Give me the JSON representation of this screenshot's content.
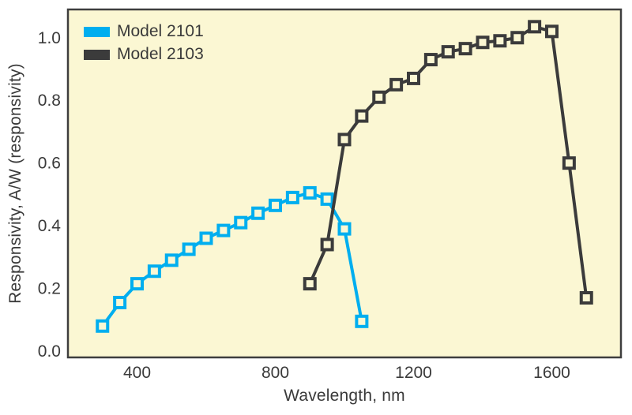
{
  "figure": {
    "background": "#ffffff",
    "plot_background": "#fbf7d3",
    "frame_color": "#3e3e3e",
    "text_color": "#3a3a3a"
  },
  "chart_data": {
    "type": "line",
    "title": "",
    "xlabel": "Wavelength, nm",
    "ylabel": "Responsivity, A/W (responsivity)",
    "xlim": [
      200,
      1800
    ],
    "ylim": [
      -0.02,
      1.09
    ],
    "x_ticks": [
      400,
      800,
      1200,
      1600
    ],
    "y_ticks": [
      0.0,
      0.2,
      0.4,
      0.6,
      0.8,
      1.0
    ],
    "grid": false,
    "legend_position": "top-left",
    "marker": "open-square",
    "series": [
      {
        "name": "Model 2101",
        "color": "#00aeef",
        "marker": "open-square",
        "x": [
          300,
          350,
          400,
          450,
          500,
          550,
          600,
          650,
          700,
          750,
          800,
          850,
          900,
          950,
          1000,
          1050
        ],
        "y": [
          0.08,
          0.155,
          0.215,
          0.255,
          0.29,
          0.325,
          0.36,
          0.385,
          0.41,
          0.44,
          0.465,
          0.49,
          0.505,
          0.485,
          0.39,
          0.095
        ]
      },
      {
        "name": "Model 2103",
        "color": "#3b3b3b",
        "marker": "open-square",
        "x": [
          900,
          950,
          1000,
          1050,
          1100,
          1150,
          1200,
          1250,
          1300,
          1350,
          1400,
          1450,
          1500,
          1550,
          1600,
          1650,
          1700
        ],
        "y": [
          0.215,
          0.34,
          0.675,
          0.75,
          0.81,
          0.85,
          0.87,
          0.93,
          0.955,
          0.965,
          0.985,
          0.99,
          1.0,
          1.035,
          1.02,
          0.6,
          0.17
        ]
      }
    ]
  }
}
